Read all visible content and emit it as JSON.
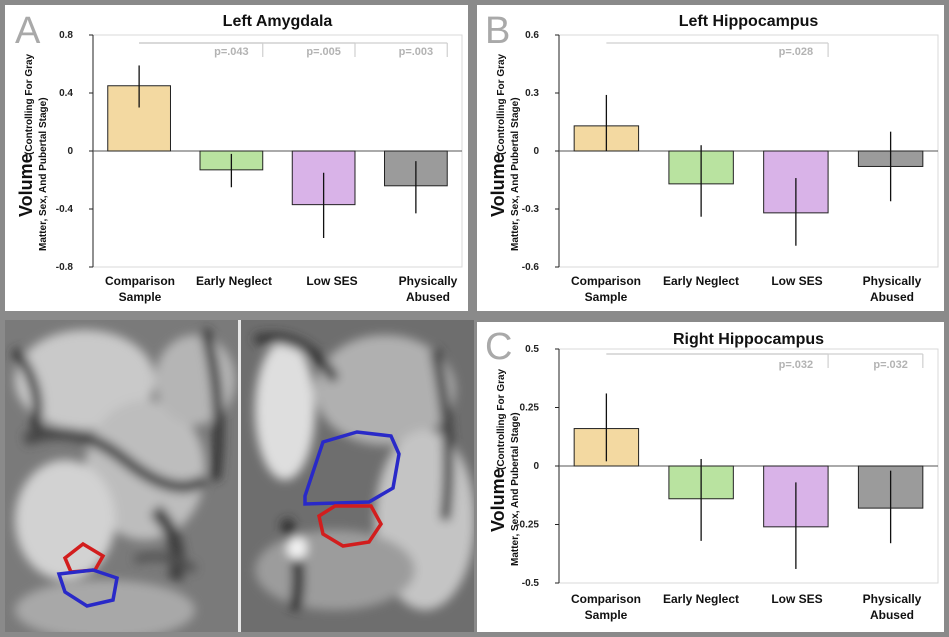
{
  "ylabel_main": "Volume",
  "ylabel_sub1": "(Controlling For Gray",
  "ylabel_sub2": "Matter, Sex, And Pubertal Stage)",
  "colors": {
    "Comparison Sample": "#f3d9a1",
    "Early Neglect": "#b9e3a0",
    "Low SES": "#d9b3e8",
    "Physically Abused": "#9b9b9b"
  },
  "chart_data": [
    {
      "type": "bar",
      "panel_letter": "A",
      "title": "Left Amygdala",
      "categories": [
        "Comparison Sample",
        "Early Neglect",
        "Low SES",
        "Physically Abused"
      ],
      "tick_labels": [
        [
          "Comparison",
          "Sample"
        ],
        [
          "Early Neglect"
        ],
        [
          "Low SES"
        ],
        [
          "Physically",
          "Abused"
        ]
      ],
      "values": [
        0.45,
        -0.13,
        -0.37,
        -0.24
      ],
      "err_high": [
        0.59,
        -0.02,
        -0.15,
        -0.07
      ],
      "err_low": [
        0.3,
        -0.25,
        -0.6,
        -0.43
      ],
      "ylim": [
        -0.8,
        0.8
      ],
      "yticks": [
        0.8,
        0.4,
        0,
        -0.4,
        -0.8
      ],
      "ytick_labels": [
        "0.8",
        "0.4",
        "0",
        "-0.4",
        "-0.8"
      ],
      "comparisons": [
        {
          "label": "p=.043",
          "target": 1
        },
        {
          "label": "p=.005",
          "target": 2
        },
        {
          "label": "p=.003",
          "target": 3
        }
      ]
    },
    {
      "type": "bar",
      "panel_letter": "B",
      "title": "Left Hippocampus",
      "categories": [
        "Comparison Sample",
        "Early Neglect",
        "Low SES",
        "Physically Abused"
      ],
      "tick_labels": [
        [
          "Comparison",
          "Sample"
        ],
        [
          "Early Neglect"
        ],
        [
          "Low SES"
        ],
        [
          "Physically",
          "Abused"
        ]
      ],
      "values": [
        0.13,
        -0.17,
        -0.32,
        -0.08
      ],
      "err_high": [
        0.29,
        0.03,
        -0.14,
        0.1
      ],
      "err_low": [
        0.0,
        -0.34,
        -0.49,
        -0.26
      ],
      "ylim": [
        -0.6,
        0.6
      ],
      "yticks": [
        0.6,
        0.3,
        0,
        -0.3,
        -0.6
      ],
      "ytick_labels": [
        "0.6",
        "0.3",
        "0",
        "-0.3",
        "-0.6"
      ],
      "comparisons": [
        {
          "label": "p=.028",
          "target": 2
        }
      ]
    },
    {
      "type": "bar",
      "panel_letter": "C",
      "title": "Right Hippocampus",
      "categories": [
        "Comparison Sample",
        "Early Neglect",
        "Low SES",
        "Physically Abused"
      ],
      "tick_labels": [
        [
          "Comparison",
          "Sample"
        ],
        [
          "Early Neglect"
        ],
        [
          "Low SES"
        ],
        [
          "Physically",
          "Abused"
        ]
      ],
      "values": [
        0.16,
        -0.14,
        -0.26,
        -0.18
      ],
      "err_high": [
        0.31,
        0.03,
        -0.07,
        -0.02
      ],
      "err_low": [
        0.02,
        -0.32,
        -0.44,
        -0.33
      ],
      "ylim": [
        -0.5,
        0.5
      ],
      "yticks": [
        0.5,
        0.25,
        0,
        -0.25,
        -0.5
      ],
      "ytick_labels": [
        "0.5",
        "0.25",
        "0",
        "-0.25",
        "-0.5"
      ],
      "comparisons": [
        {
          "label": "p=.032",
          "target": 2
        },
        {
          "label": "p=.032",
          "target": 3
        }
      ]
    }
  ]
}
